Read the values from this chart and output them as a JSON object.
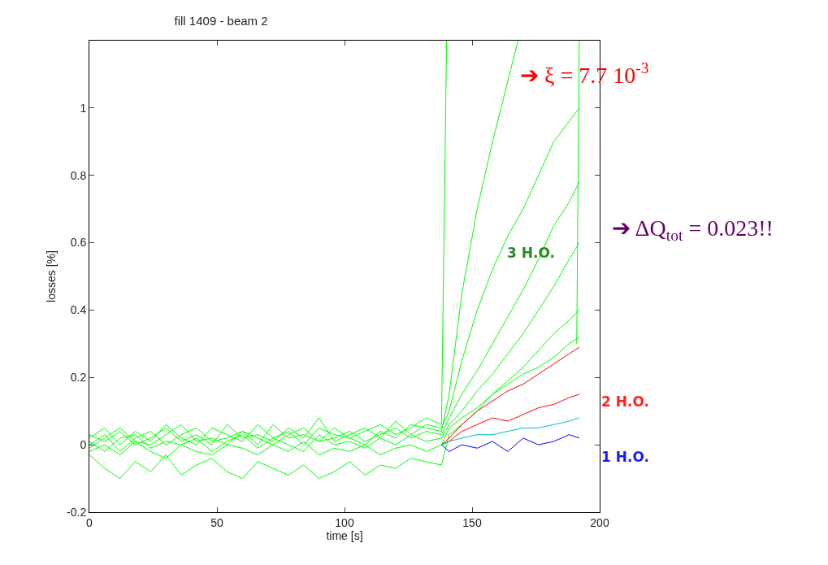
{
  "chart_data": {
    "type": "line",
    "title": "fill 1409 - beam 2",
    "xlabel": "time [s]",
    "ylabel": "losses [%]",
    "xlim": [
      0,
      200
    ],
    "xticks": [
      0,
      50,
      100,
      150,
      200
    ],
    "ylim": [
      -0.2,
      1.2
    ],
    "yticks": [
      -0.2,
      0,
      0.2,
      0.4,
      0.6,
      0.8,
      1
    ],
    "marker": "none",
    "line_style": "solid",
    "annotations": [
      "3 H.O.",
      "2 H.O.",
      "1 H.O.",
      "➔ ξ = 7.7 10$^{-3}$",
      "➔ ΔQ$_{tot}$ = 0.023!!"
    ],
    "series": [
      {
        "color": "#00ff00",
        "x": [
          0,
          6,
          12,
          18,
          24,
          30,
          36,
          42,
          48,
          54,
          60,
          66,
          72,
          78,
          84,
          90,
          96,
          102,
          108,
          114,
          120,
          126,
          132,
          138,
          140
        ],
        "values": [
          0.02,
          0.05,
          0.0,
          0.04,
          0.01,
          0.06,
          0.02,
          0.0,
          0.05,
          0.03,
          0.01,
          0.06,
          0.02,
          0.04,
          0.0,
          0.05,
          0.03,
          0.02,
          0.04,
          0.06,
          0.03,
          0.05,
          0.08,
          0.06,
          1.2
        ]
      },
      {
        "color": "#00ff00",
        "x": [
          0,
          6,
          12,
          18,
          24,
          30,
          36,
          42,
          48,
          54,
          60,
          66,
          72,
          78,
          84,
          90,
          96,
          102,
          108,
          114,
          120,
          126,
          132,
          138,
          141,
          146,
          152,
          158,
          164,
          168
        ],
        "values": [
          0.0,
          0.03,
          -0.02,
          0.02,
          0.04,
          0.0,
          0.03,
          0.05,
          0.01,
          0.02,
          0.04,
          0.0,
          0.06,
          0.02,
          0.03,
          0.01,
          0.05,
          0.02,
          0.0,
          0.04,
          0.02,
          0.06,
          0.05,
          0.04,
          0.15,
          0.45,
          0.7,
          0.9,
          1.08,
          1.2
        ]
      },
      {
        "color": "#00ff00",
        "x": [
          0,
          6,
          12,
          18,
          24,
          30,
          36,
          42,
          48,
          54,
          60,
          66,
          72,
          78,
          84,
          90,
          96,
          102,
          108,
          114,
          120,
          126,
          132,
          138,
          141,
          146,
          152,
          158,
          164,
          170,
          176,
          182,
          188,
          192
        ],
        "values": [
          0.03,
          0.01,
          0.04,
          0.0,
          0.02,
          0.05,
          0.01,
          0.03,
          0.0,
          0.06,
          0.02,
          0.03,
          0.01,
          0.05,
          0.02,
          0.08,
          0.01,
          0.03,
          0.05,
          0.02,
          0.07,
          0.03,
          0.06,
          0.05,
          0.1,
          0.25,
          0.4,
          0.52,
          0.62,
          0.7,
          0.8,
          0.9,
          0.96,
          1.0
        ]
      },
      {
        "color": "#00ff00",
        "x": [
          0,
          6,
          12,
          18,
          24,
          30,
          36,
          42,
          48,
          54,
          60,
          66,
          72,
          78,
          84,
          90,
          96,
          102,
          108,
          114,
          120,
          126,
          132,
          138,
          141,
          146,
          152,
          158,
          164,
          170,
          176,
          182,
          188,
          192
        ],
        "values": [
          -0.01,
          0.02,
          0.05,
          0.01,
          0.0,
          0.03,
          0.06,
          0.01,
          0.02,
          0.0,
          0.04,
          0.02,
          0.0,
          0.03,
          0.05,
          0.01,
          0.02,
          0.04,
          0.01,
          0.03,
          0.05,
          0.02,
          0.04,
          0.03,
          0.08,
          0.15,
          0.22,
          0.3,
          0.38,
          0.46,
          0.55,
          0.65,
          0.72,
          0.78
        ]
      },
      {
        "color": "#00ff00",
        "x": [
          0,
          6,
          12,
          18,
          24,
          30,
          36,
          42,
          48,
          54,
          60,
          66,
          72,
          78,
          84,
          90,
          96,
          102,
          108,
          114,
          120,
          126,
          132,
          138,
          141,
          146,
          152,
          158,
          164,
          170,
          176,
          182,
          188,
          192
        ],
        "values": [
          0.01,
          -0.02,
          0.02,
          0.03,
          -0.01,
          0.01,
          0.0,
          0.02,
          -0.02,
          0.01,
          0.03,
          -0.01,
          0.02,
          0.0,
          -0.02,
          0.03,
          0.0,
          0.01,
          -0.01,
          0.02,
          0.0,
          0.03,
          0.01,
          0.02,
          0.06,
          0.1,
          0.16,
          0.21,
          0.27,
          0.33,
          0.4,
          0.47,
          0.55,
          0.6
        ]
      },
      {
        "color": "#00ff00",
        "x": [
          0,
          6,
          12,
          18,
          24,
          30,
          36,
          42,
          48,
          54,
          60,
          66,
          72,
          78,
          84,
          90,
          96,
          102,
          108,
          114,
          120,
          126,
          132,
          138,
          141,
          146,
          152,
          158,
          164,
          170,
          176,
          182,
          188,
          192
        ],
        "values": [
          -0.02,
          0.0,
          -0.03,
          0.01,
          -0.02,
          -0.04,
          0.0,
          -0.02,
          -0.03,
          0.0,
          -0.01,
          -0.03,
          0.0,
          -0.02,
          0.01,
          -0.03,
          -0.01,
          -0.02,
          0.0,
          -0.03,
          -0.01,
          0.0,
          -0.02,
          0.0,
          0.05,
          0.08,
          0.11,
          0.15,
          0.19,
          0.23,
          0.28,
          0.33,
          0.37,
          0.4
        ]
      },
      {
        "color": "#00ff00",
        "x": [
          0,
          6,
          12,
          18,
          24,
          30,
          36,
          42,
          48,
          54,
          60,
          66,
          72,
          78,
          84,
          90,
          96,
          102,
          108,
          114,
          120,
          126,
          132,
          138,
          141,
          146,
          152,
          158,
          164,
          170,
          176,
          182,
          188,
          192
        ],
        "values": [
          -0.03,
          -0.07,
          -0.1,
          -0.05,
          -0.08,
          -0.03,
          -0.09,
          -0.06,
          -0.04,
          -0.08,
          -0.1,
          -0.05,
          -0.07,
          -0.09,
          -0.06,
          -0.1,
          -0.08,
          -0.05,
          -0.09,
          -0.06,
          -0.07,
          -0.04,
          -0.05,
          -0.06,
          0.03,
          0.06,
          0.1,
          0.15,
          0.18,
          0.21,
          0.23,
          0.26,
          0.3,
          0.32
        ]
      },
      {
        "color": "#00ff00",
        "x": [
          191,
          192
        ],
        "values": [
          0.3,
          1.2
        ]
      },
      {
        "color": "#ff0000",
        "x": [
          138,
          141,
          146,
          152,
          158,
          164,
          170,
          176,
          182,
          188,
          192
        ],
        "values": [
          0.0,
          0.02,
          0.06,
          0.1,
          0.13,
          0.16,
          0.18,
          0.21,
          0.24,
          0.27,
          0.29
        ]
      },
      {
        "color": "#ff0000",
        "x": [
          138,
          141,
          146,
          152,
          158,
          164,
          170,
          176,
          182,
          188,
          192
        ],
        "values": [
          0.0,
          0.01,
          0.04,
          0.06,
          0.08,
          0.07,
          0.09,
          0.11,
          0.12,
          0.14,
          0.15
        ]
      },
      {
        "color": "#0000ff",
        "x": [
          138,
          141,
          146,
          152,
          158,
          164,
          170,
          176,
          182,
          188,
          192
        ],
        "values": [
          0.0,
          -0.02,
          0.0,
          -0.01,
          0.01,
          -0.02,
          0.02,
          0.0,
          0.01,
          0.03,
          0.02
        ]
      },
      {
        "color": "#00bfbf",
        "x": [
          138,
          141,
          146,
          152,
          158,
          164,
          170,
          176,
          182,
          188,
          192
        ],
        "values": [
          0.0,
          0.01,
          0.02,
          0.03,
          0.03,
          0.04,
          0.05,
          0.05,
          0.06,
          0.07,
          0.08
        ]
      }
    ]
  }
}
